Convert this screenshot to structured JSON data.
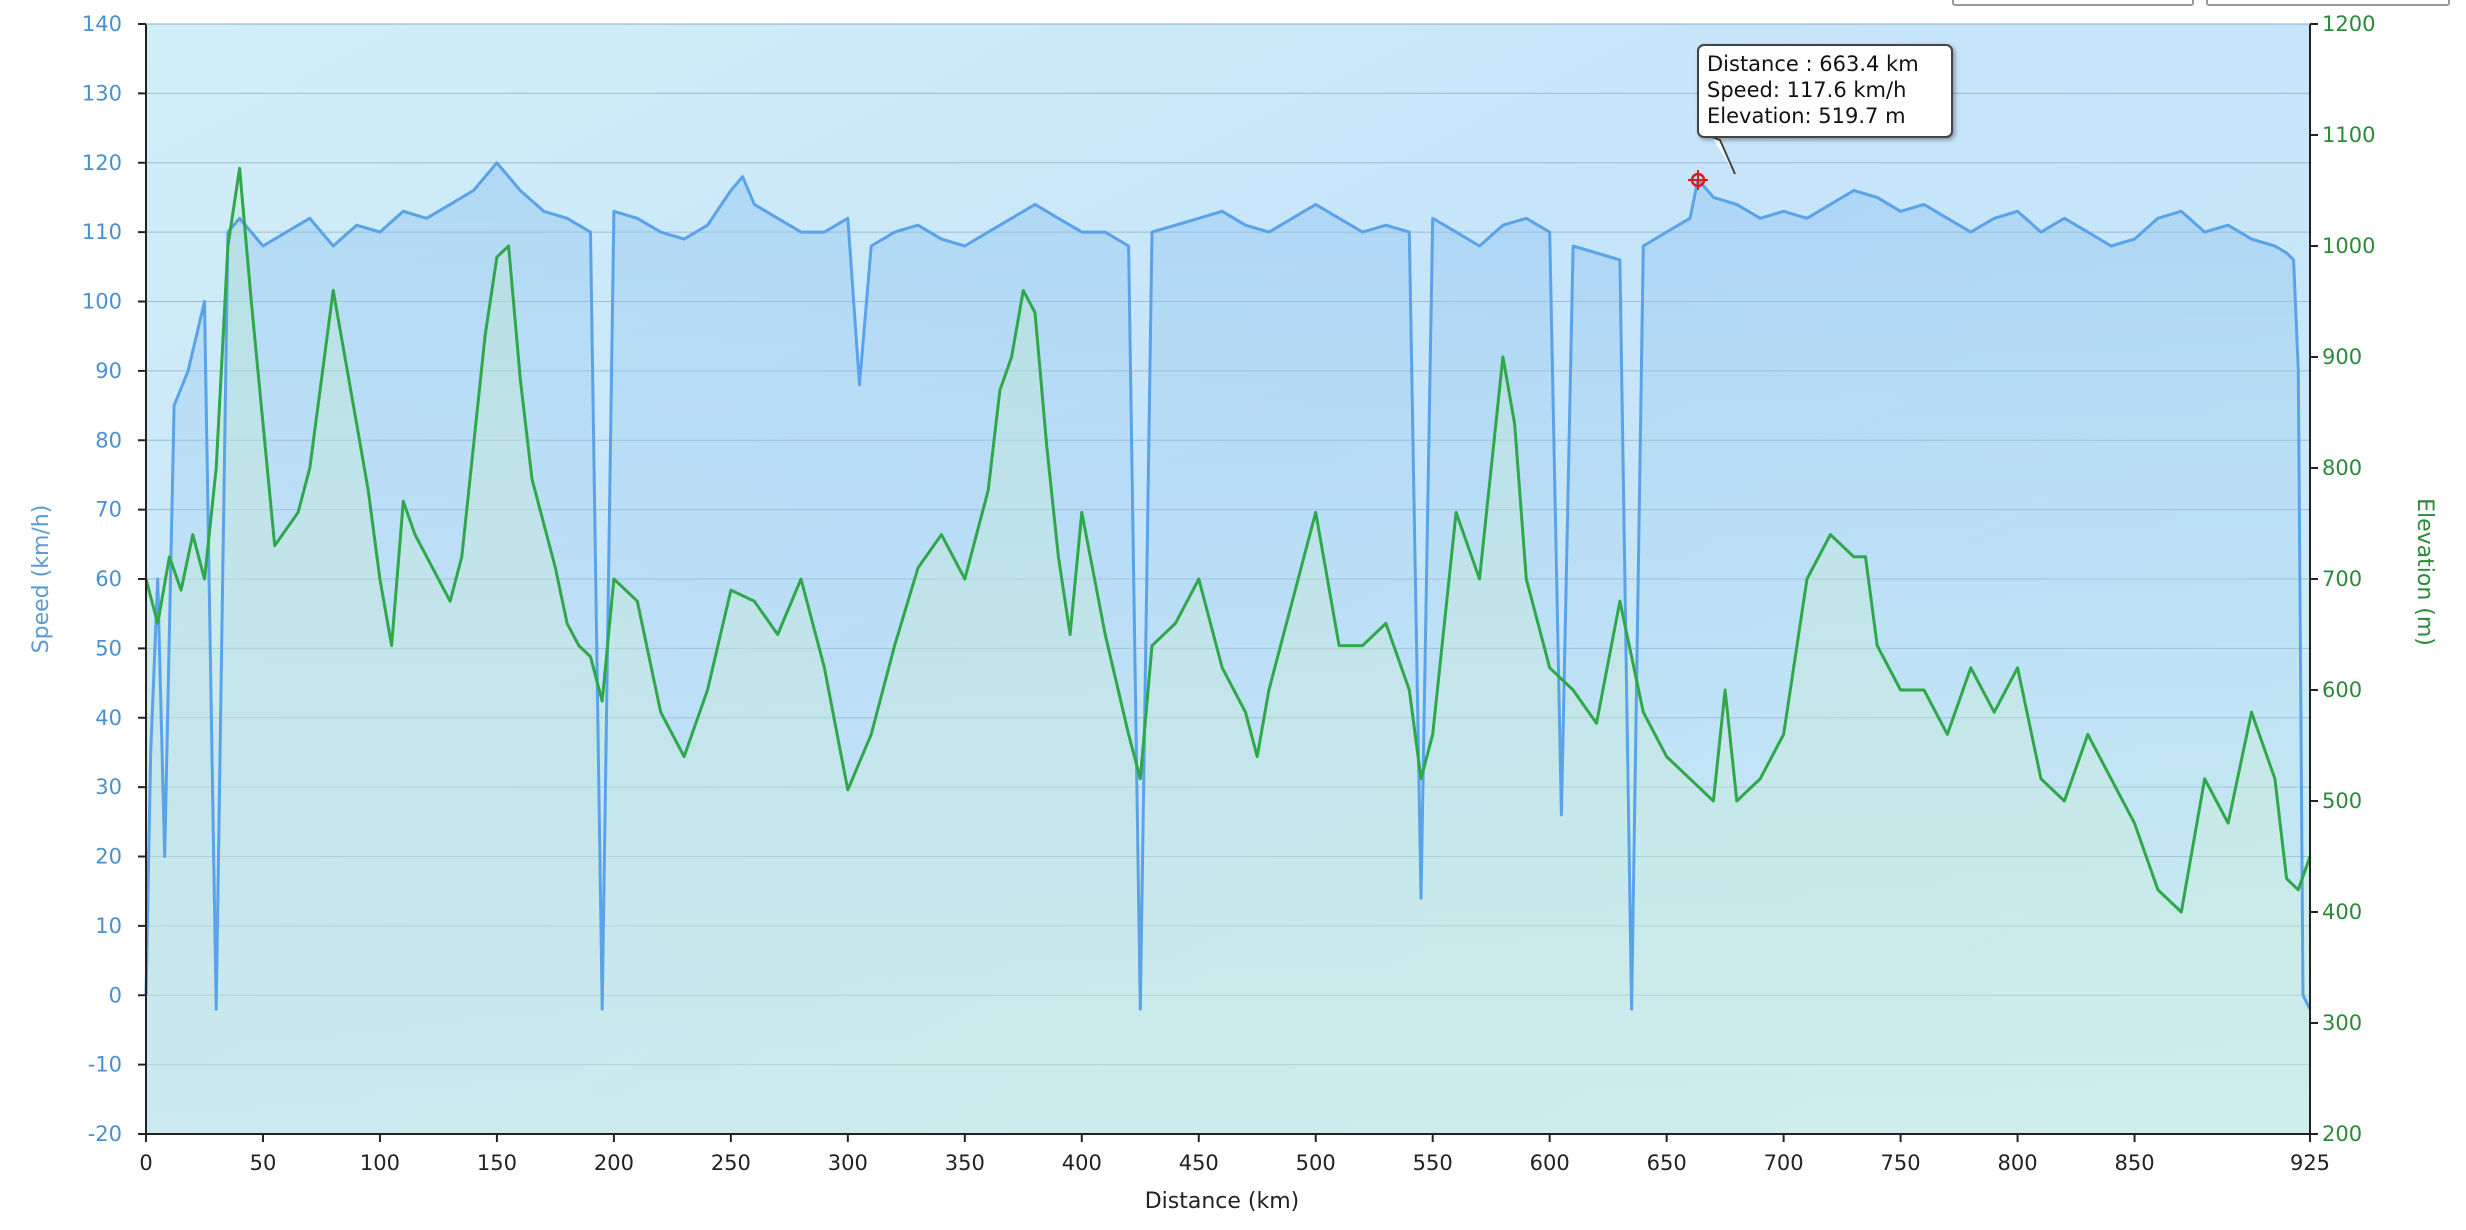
{
  "chart_data": {
    "type": "line",
    "xlabel": "Distance  (km)",
    "ylabel_left": "Speed (km/h)",
    "ylabel_right": "Elevation (m)",
    "x_range": [
      0,
      925
    ],
    "y_left_range": [
      -20,
      140
    ],
    "y_right_range": [
      200,
      1200
    ],
    "x_ticks": [
      "0",
      "50",
      "100",
      "150",
      "200",
      "250",
      "300",
      "350",
      "400",
      "450",
      "500",
      "550",
      "600",
      "650",
      "700",
      "750",
      "800",
      "850",
      "925"
    ],
    "x_tick_values": [
      0,
      50,
      100,
      150,
      200,
      250,
      300,
      350,
      400,
      450,
      500,
      550,
      600,
      650,
      700,
      750,
      800,
      850,
      925
    ],
    "y_left_ticks": [
      "140",
      "130",
      "120",
      "110",
      "100",
      "90",
      "80",
      "70",
      "60",
      "50",
      "40",
      "30",
      "20",
      "10",
      "0",
      "-10",
      "-20"
    ],
    "y_right_ticks": [
      "1200",
      "1100",
      "1000",
      "900",
      "800",
      "700",
      "600",
      "500",
      "400",
      "300",
      "200"
    ],
    "grid": true,
    "series": [
      {
        "name": "Speed",
        "axis": "left",
        "color": "#5aa3e8",
        "x": [
          0,
          2,
          5,
          8,
          12,
          18,
          25,
          30,
          35,
          40,
          50,
          60,
          70,
          80,
          90,
          100,
          110,
          120,
          130,
          140,
          150,
          155,
          160,
          170,
          180,
          190,
          195,
          200,
          210,
          220,
          230,
          240,
          250,
          255,
          260,
          270,
          280,
          290,
          300,
          305,
          310,
          320,
          330,
          340,
          350,
          360,
          370,
          380,
          390,
          400,
          410,
          420,
          425,
          430,
          440,
          450,
          460,
          470,
          480,
          490,
          500,
          510,
          520,
          530,
          540,
          545,
          550,
          560,
          570,
          580,
          590,
          600,
          605,
          610,
          620,
          630,
          635,
          640,
          650,
          660,
          663.4,
          670,
          680,
          690,
          700,
          710,
          720,
          730,
          740,
          750,
          760,
          770,
          780,
          790,
          800,
          810,
          820,
          830,
          840,
          850,
          860,
          870,
          880,
          890,
          900,
          910,
          915,
          918,
          920,
          922,
          925
        ],
        "y": [
          0,
          35,
          60,
          20,
          85,
          90,
          100,
          -2,
          110,
          112,
          108,
          110,
          112,
          108,
          111,
          110,
          113,
          112,
          114,
          116,
          120,
          118,
          116,
          113,
          112,
          110,
          -2,
          113,
          112,
          110,
          109,
          111,
          116,
          118,
          114,
          112,
          110,
          110,
          112,
          88,
          108,
          110,
          111,
          109,
          108,
          110,
          112,
          114,
          112,
          110,
          110,
          108,
          -2,
          110,
          111,
          112,
          113,
          111,
          110,
          112,
          114,
          112,
          110,
          111,
          110,
          14,
          112,
          110,
          108,
          111,
          112,
          110,
          26,
          108,
          107,
          106,
          -2,
          108,
          110,
          112,
          117.6,
          115,
          114,
          112,
          113,
          112,
          114,
          116,
          115,
          113,
          114,
          112,
          110,
          112,
          113,
          110,
          112,
          110,
          108,
          109,
          112,
          113,
          110,
          111,
          109,
          108,
          107,
          106,
          90,
          0,
          -2
        ]
      },
      {
        "name": "Elevation",
        "axis": "right",
        "color": "#2ea84a",
        "x": [
          0,
          5,
          10,
          15,
          20,
          25,
          30,
          35,
          40,
          45,
          55,
          65,
          70,
          75,
          80,
          85,
          90,
          95,
          100,
          105,
          110,
          115,
          120,
          125,
          130,
          135,
          140,
          145,
          150,
          155,
          160,
          165,
          170,
          175,
          180,
          185,
          190,
          195,
          200,
          210,
          220,
          230,
          240,
          250,
          260,
          270,
          280,
          290,
          300,
          310,
          320,
          330,
          340,
          350,
          360,
          365,
          370,
          375,
          380,
          385,
          390,
          395,
          400,
          410,
          420,
          425,
          430,
          440,
          450,
          460,
          470,
          475,
          480,
          490,
          500,
          510,
          520,
          530,
          540,
          545,
          550,
          560,
          570,
          575,
          580,
          585,
          590,
          600,
          610,
          620,
          630,
          640,
          650,
          660,
          670,
          675,
          680,
          690,
          700,
          710,
          720,
          730,
          735,
          740,
          750,
          760,
          770,
          780,
          790,
          800,
          810,
          820,
          830,
          840,
          850,
          860,
          870,
          875,
          880,
          890,
          900,
          910,
          915,
          920,
          925
        ],
        "y": [
          700,
          660,
          720,
          690,
          740,
          700,
          800,
          1000,
          1070,
          950,
          730,
          760,
          800,
          880,
          960,
          900,
          840,
          780,
          700,
          640,
          770,
          740,
          720,
          700,
          680,
          720,
          820,
          920,
          990,
          1000,
          880,
          790,
          750,
          710,
          660,
          640,
          630,
          590,
          700,
          680,
          580,
          540,
          600,
          690,
          680,
          650,
          700,
          620,
          510,
          560,
          640,
          710,
          740,
          700,
          780,
          870,
          900,
          960,
          940,
          820,
          720,
          650,
          760,
          650,
          560,
          520,
          640,
          660,
          700,
          620,
          580,
          540,
          600,
          680,
          760,
          640,
          640,
          660,
          600,
          520,
          560,
          760,
          700,
          800,
          900,
          840,
          700,
          620,
          600,
          570,
          680,
          580,
          540,
          520,
          500,
          600,
          500,
          520,
          560,
          700,
          740,
          720,
          720,
          640,
          600,
          600,
          560,
          620,
          580,
          620,
          520,
          500,
          560,
          520,
          480,
          420,
          400,
          460,
          520,
          480,
          580,
          520,
          430,
          420,
          450
        ]
      }
    ],
    "tooltip": {
      "distance_label": "Distance  : 663.4 km",
      "speed_label": "Speed: 117.6 km/h",
      "elevation_label": "Elevation: 519.7 m"
    }
  }
}
